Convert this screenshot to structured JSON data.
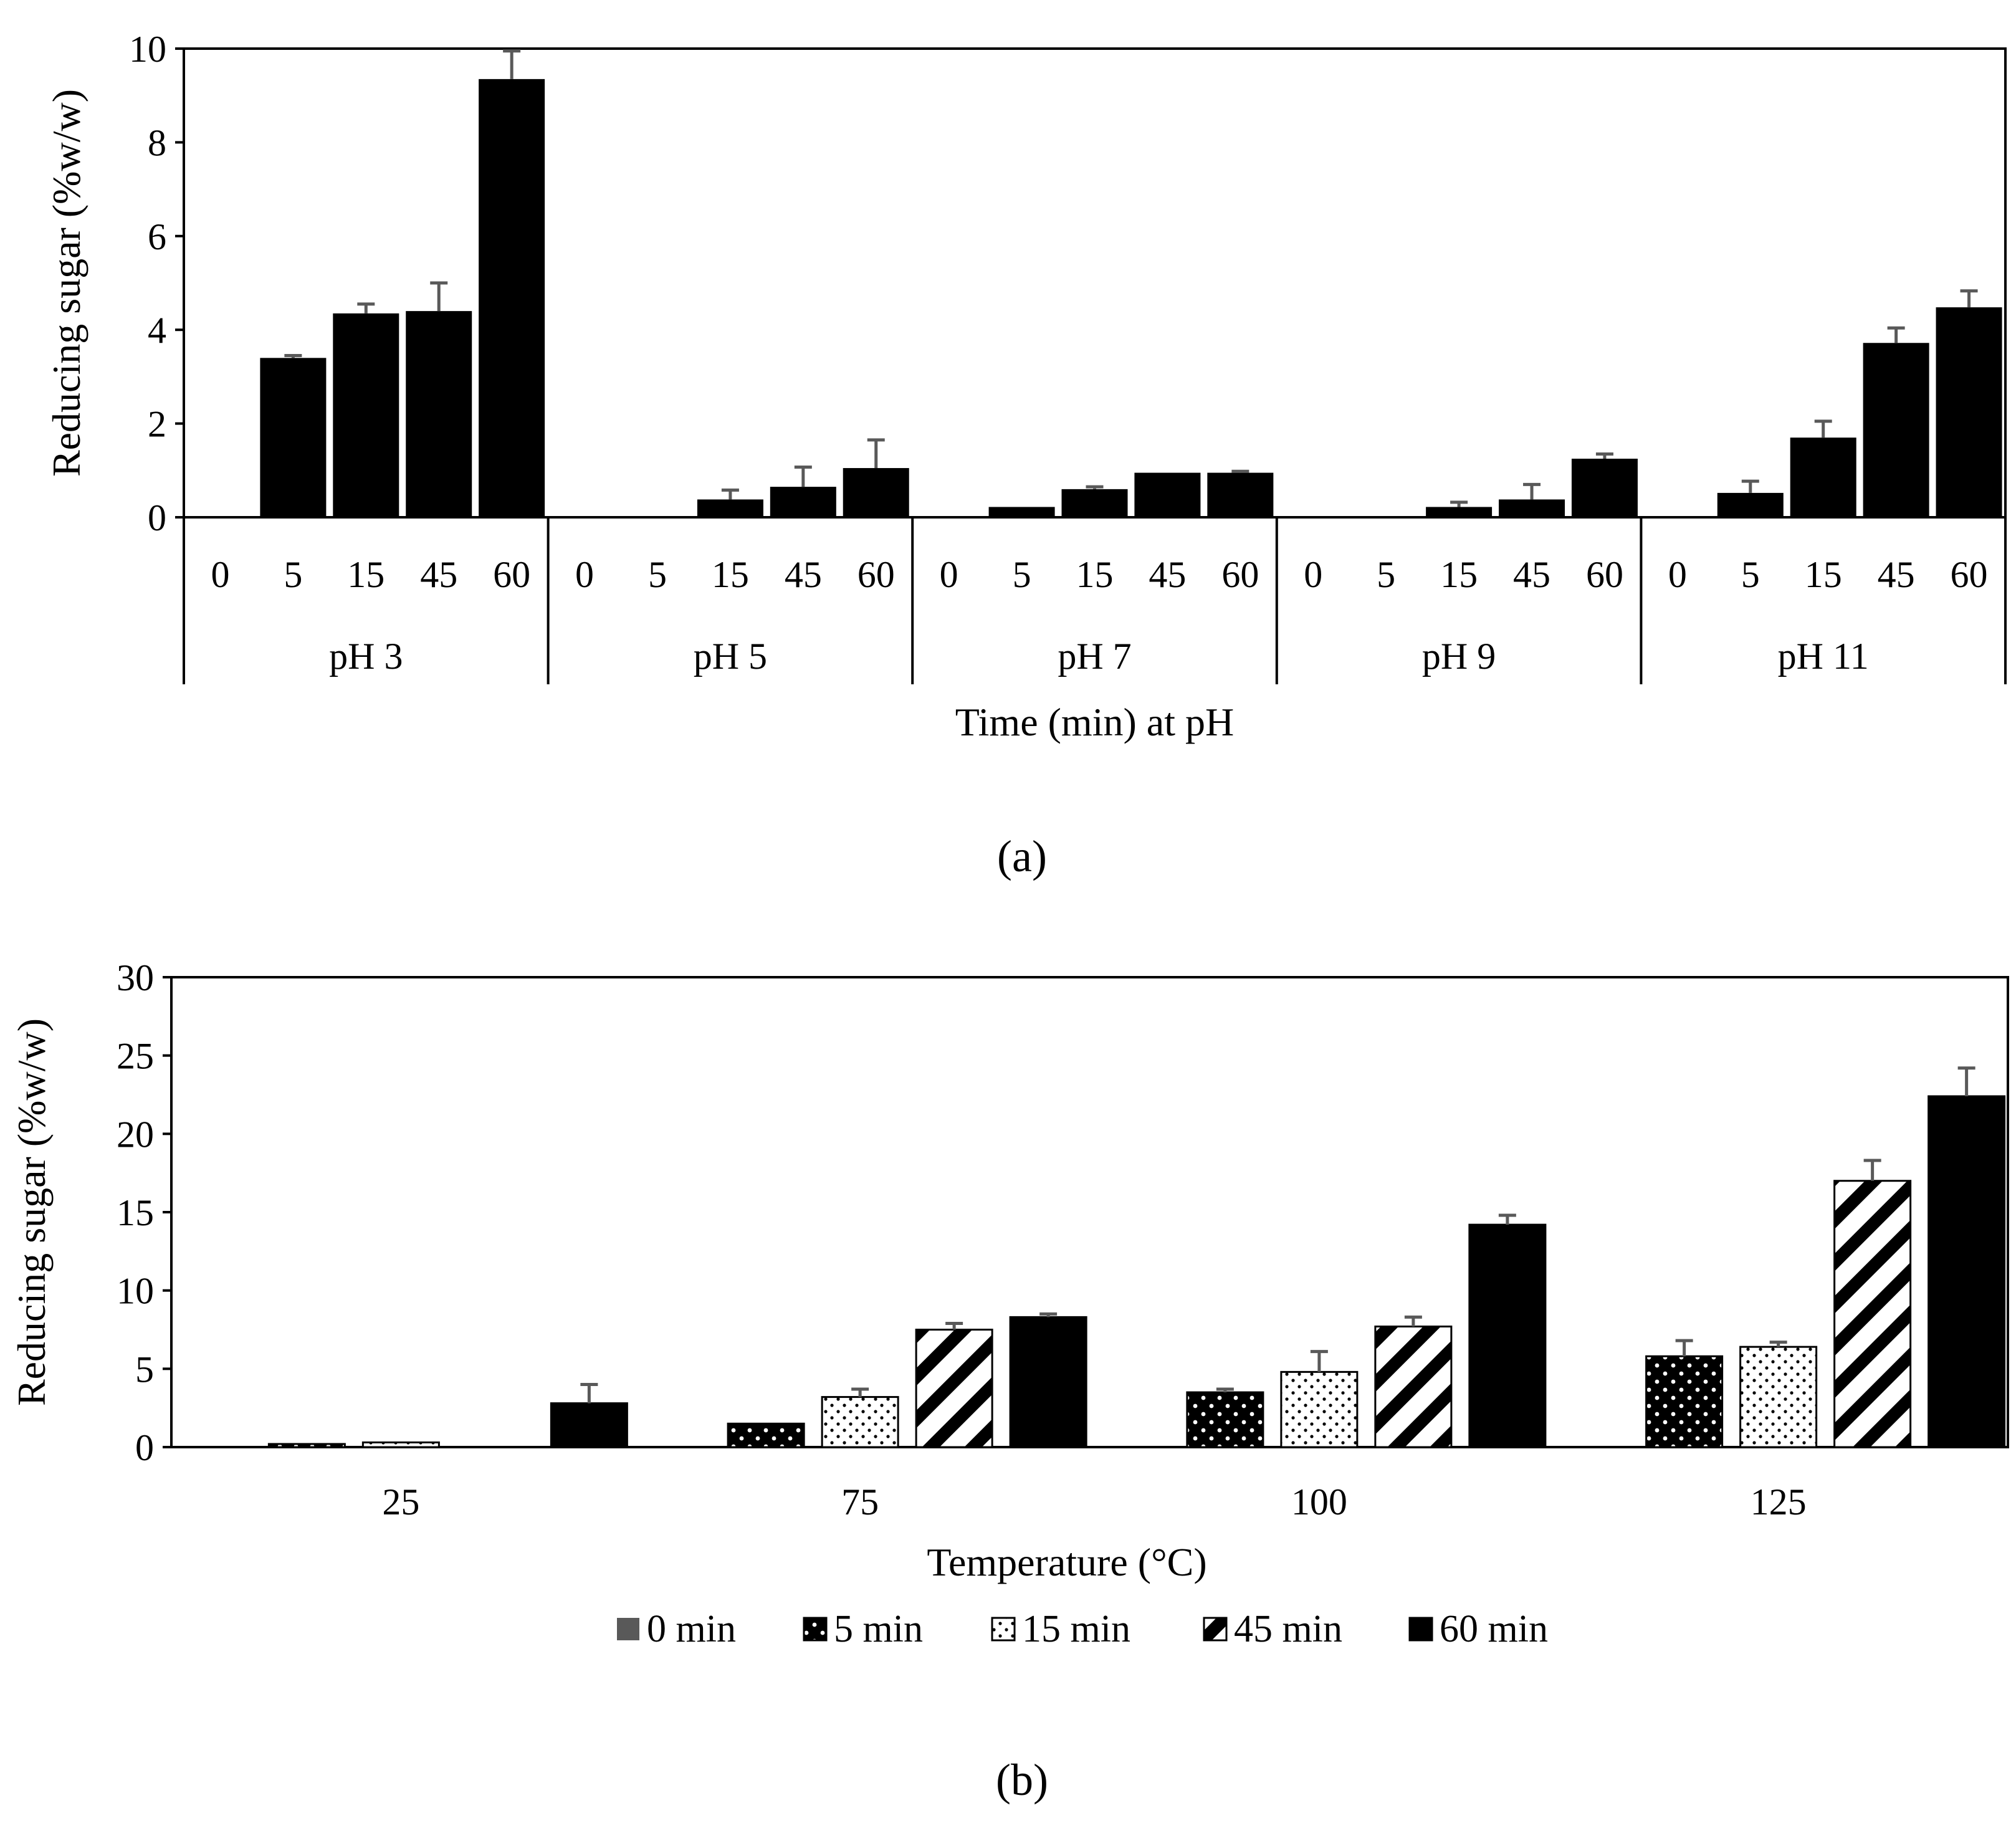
{
  "figure": {
    "panel_a_label": "(a)",
    "panel_b_label": "(b)"
  },
  "colors": {
    "bar": "#000000",
    "error_bar": "#595959",
    "legend_zero": "#595959"
  },
  "chart_data": [
    {
      "type": "bar",
      "title": "",
      "xlabel": "Time (min) at pH",
      "ylabel": "Reducing  sugar (%w/w)",
      "ylim": [
        0,
        10
      ],
      "yticks": [
        0,
        2,
        4,
        6,
        8,
        10
      ],
      "grid": false,
      "groups": [
        {
          "label": "pH 3",
          "categories": [
            "0",
            "5",
            "15",
            "45",
            "60"
          ],
          "values": [
            0,
            3.4,
            4.35,
            4.4,
            9.35
          ],
          "errors": [
            0,
            0.05,
            0.2,
            0.6,
            0.6
          ]
        },
        {
          "label": "pH 5",
          "categories": [
            "0",
            "5",
            "15",
            "45",
            "60"
          ],
          "values": [
            0,
            0.02,
            0.38,
            0.65,
            1.05
          ],
          "errors": [
            0,
            0,
            0.2,
            0.42,
            0.6
          ]
        },
        {
          "label": "pH 7",
          "categories": [
            "0",
            "5",
            "15",
            "45",
            "60"
          ],
          "values": [
            0,
            0.22,
            0.6,
            0.95,
            0.95
          ],
          "errors": [
            0,
            0.02,
            0.05,
            0.02,
            0.03
          ]
        },
        {
          "label": "pH 9",
          "categories": [
            "0",
            "5",
            "15",
            "45",
            "60"
          ],
          "values": [
            0,
            0.02,
            0.22,
            0.38,
            1.25
          ],
          "errors": [
            0,
            0,
            0.1,
            0.32,
            0.1
          ]
        },
        {
          "label": "pH 11",
          "categories": [
            "0",
            "5",
            "15",
            "45",
            "60"
          ],
          "values": [
            0,
            0.52,
            1.7,
            3.72,
            4.48
          ],
          "errors": [
            0,
            0.25,
            0.35,
            0.32,
            0.35
          ]
        }
      ]
    },
    {
      "type": "bar",
      "title": "",
      "xlabel": "Temperature (°C)",
      "ylabel": "Reducing  sugar (%w/w)",
      "ylim": [
        0,
        30
      ],
      "yticks": [
        0,
        5,
        10,
        15,
        20,
        25,
        30
      ],
      "grid": false,
      "legend_position": "bottom",
      "categories": [
        "25",
        "75",
        "100",
        "125"
      ],
      "series": [
        {
          "name": "0 min",
          "pattern": "solid-gray",
          "values": [
            0,
            0,
            0,
            0
          ],
          "errors": [
            0,
            0,
            0,
            0
          ]
        },
        {
          "name": "5 min",
          "pattern": "dots-dark",
          "values": [
            0.2,
            1.5,
            3.5,
            5.8
          ],
          "errors": [
            0,
            0.05,
            0.2,
            1.0
          ]
        },
        {
          "name": "15 min",
          "pattern": "dots-light",
          "values": [
            0.3,
            3.2,
            4.8,
            6.4
          ],
          "errors": [
            0.05,
            0.5,
            1.3,
            0.3
          ]
        },
        {
          "name": "45 min",
          "pattern": "diagonal",
          "values": [
            0,
            7.5,
            7.7,
            17.0
          ],
          "errors": [
            0,
            0.4,
            0.6,
            1.3
          ]
        },
        {
          "name": "60 min",
          "pattern": "solid",
          "values": [
            2.8,
            8.3,
            14.2,
            22.4
          ],
          "errors": [
            1.2,
            0.2,
            0.6,
            1.8
          ]
        }
      ]
    }
  ]
}
